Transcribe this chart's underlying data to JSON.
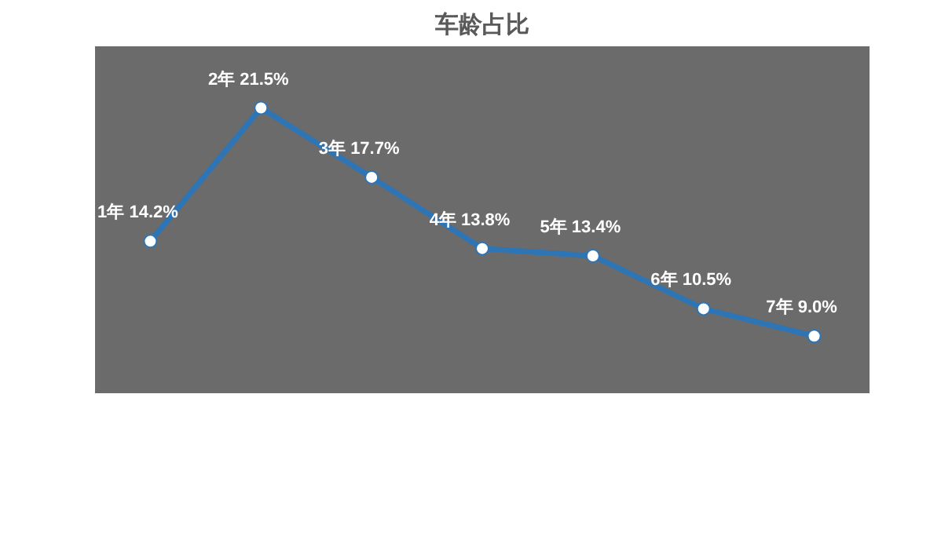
{
  "chart_data": {
    "type": "line",
    "title": "车龄占比",
    "categories": [
      null,
      null,
      null,
      null,
      null,
      null,
      null
    ],
    "series": [
      {
        "color": "#2e75b6",
        "values": [
          14.2,
          21.5,
          17.7,
          13.8,
          13.4,
          10.5,
          9.0
        ],
        "value_labels": [
          "1年 14.2%",
          "2年 21.5%",
          "3年 17.7%",
          "4年 13.8%",
          "5年 13.4%",
          "6年 10.5%",
          "7年 9.0%"
        ]
      }
    ],
    "marker": "circle",
    "grid": false,
    "tick_labels": false
  }
}
